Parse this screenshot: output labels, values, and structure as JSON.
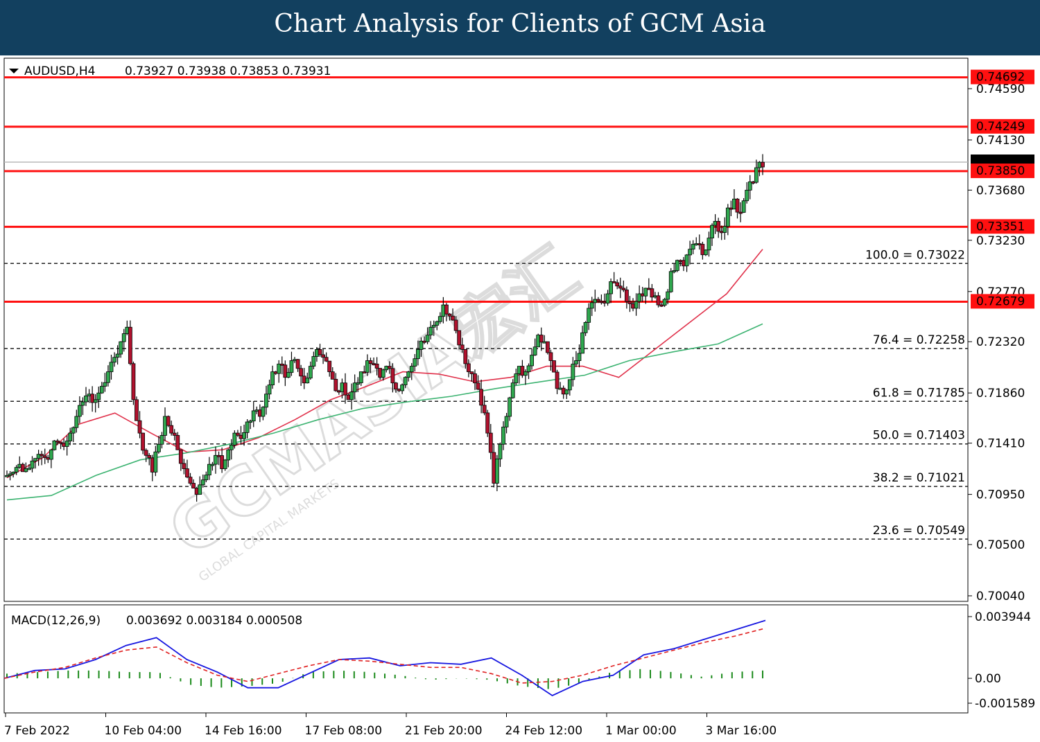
{
  "header": {
    "title": "Chart Analysis for Clients of GCM Asia"
  },
  "watermark": {
    "text": "GCMASIA宏汇",
    "subtitle": "GLOBAL CAPITAL MARKETS"
  },
  "chart_data": [
    {
      "type": "candlestick",
      "title": "AUDUSD,H4",
      "ohlc_label": "0.73927 0.73938 0.73853 0.73931",
      "ylim": [
        0.7004,
        0.749
      ],
      "y_ticks": [
        {
          "value": 0.7459,
          "label": "0.74590"
        },
        {
          "value": 0.7413,
          "label": "0.74130"
        },
        {
          "value": 0.7368,
          "label": "0.73680"
        },
        {
          "value": 0.7323,
          "label": "0.73230"
        },
        {
          "value": 0.7277,
          "label": "0.72770"
        },
        {
          "value": 0.7232,
          "label": "0.72320"
        },
        {
          "value": 0.7186,
          "label": "0.71860"
        },
        {
          "value": 0.7141,
          "label": "0.71410"
        },
        {
          "value": 0.7095,
          "label": "0.70950"
        },
        {
          "value": 0.705,
          "label": "0.70500"
        },
        {
          "value": 0.7004,
          "label": "0.70040"
        }
      ],
      "x_labels": [
        "7 Feb 2022",
        "10 Feb 04:00",
        "14 Feb 16:00",
        "17 Feb 08:00",
        "21 Feb 20:00",
        "24 Feb 12:00",
        "1 Mar 00:00",
        "3 Mar 16:00"
      ],
      "current_price": {
        "value": 0.73931,
        "label": "0.73931"
      },
      "resistance_levels": [
        {
          "value": 0.74692,
          "label": "0.74692"
        },
        {
          "value": 0.74249,
          "label": "0.74249"
        },
        {
          "value": 0.7385,
          "label": "0.73850"
        },
        {
          "value": 0.73351,
          "label": "0.73351"
        },
        {
          "value": 0.72679,
          "label": "0.72679"
        }
      ],
      "fibonacci_levels": [
        {
          "value": 0.73022,
          "label": "100.0 = 0.73022"
        },
        {
          "value": 0.72258,
          "label": "76.4 = 0.72258"
        },
        {
          "value": 0.71785,
          "label": "61.8 = 0.71785"
        },
        {
          "value": 0.71403,
          "label": "50.0 = 0.71403"
        },
        {
          "value": 0.71021,
          "label": "38.2 = 0.71021"
        },
        {
          "value": 0.70549,
          "label": "23.6 = 0.70549"
        }
      ],
      "trend_path": [
        0.7112,
        0.7115,
        0.7122,
        0.7118,
        0.7125,
        0.7131,
        0.7128,
        0.7135,
        0.7142,
        0.7138,
        0.715,
        0.7165,
        0.7178,
        0.7185,
        0.718,
        0.7192,
        0.7205,
        0.7218,
        0.7232,
        0.7245,
        0.718,
        0.715,
        0.713,
        0.7115,
        0.714,
        0.7165,
        0.715,
        0.7135,
        0.7118,
        0.7105,
        0.7095,
        0.7108,
        0.7122,
        0.713,
        0.7118,
        0.7135,
        0.715,
        0.7145,
        0.716,
        0.717,
        0.7165,
        0.7185,
        0.7205,
        0.7212,
        0.72,
        0.7215,
        0.7208,
        0.7195,
        0.721,
        0.7225,
        0.7218,
        0.7205,
        0.7188,
        0.7195,
        0.718,
        0.7195,
        0.7205,
        0.7215,
        0.7212,
        0.72,
        0.721,
        0.7195,
        0.7188,
        0.72,
        0.721,
        0.7225,
        0.7232,
        0.7245,
        0.725,
        0.7265,
        0.7255,
        0.7242,
        0.7225,
        0.7205,
        0.7195,
        0.7175,
        0.715,
        0.7105,
        0.714,
        0.7165,
        0.7195,
        0.721,
        0.7205,
        0.722,
        0.7238,
        0.7232,
        0.7215,
        0.719,
        0.7185,
        0.7198,
        0.7215,
        0.724,
        0.7262,
        0.727,
        0.7268,
        0.7275,
        0.7285,
        0.728,
        0.7268,
        0.7262,
        0.7275,
        0.728,
        0.7272,
        0.7265,
        0.727,
        0.7295,
        0.7305,
        0.73,
        0.7315,
        0.732,
        0.731,
        0.7325,
        0.734,
        0.733,
        0.7352,
        0.736,
        0.7348,
        0.7368,
        0.7375,
        0.7393
      ],
      "series": [
        {
          "name": "",
          "color": "#e0304a",
          "values": [
            0.711,
            0.7128,
            0.7158,
            0.7168,
            0.715,
            0.7133,
            0.7135,
            0.7146,
            0.7162,
            0.718,
            0.7192,
            0.7205,
            0.7203,
            0.7196,
            0.72,
            0.721,
            0.721,
            0.72,
            0.7225,
            0.725,
            0.7275,
            0.7315
          ]
        },
        {
          "name": "",
          "color": "#3cb371",
          "values": [
            0.709,
            0.7094,
            0.7112,
            0.7126,
            0.7132,
            0.714,
            0.715,
            0.7162,
            0.7172,
            0.7178,
            0.7183,
            0.719,
            0.7196,
            0.7202,
            0.7215,
            0.7223,
            0.723,
            0.7248
          ]
        }
      ]
    },
    {
      "type": "macd",
      "title": "MACD(12,26,9)",
      "values_label": "0.003692 0.003184 0.000508",
      "y_ticks": [
        {
          "value": 0.003944,
          "label": "0.003944"
        },
        {
          "value": 0.0,
          "label": "0.00"
        },
        {
          "value": -0.001589,
          "label": "-0.001589"
        }
      ],
      "series": [
        {
          "name": "",
          "color": "#1515e0",
          "values": [
            0.0,
            0.0005,
            0.0006,
            0.0012,
            0.0021,
            0.0026,
            0.0012,
            0.0004,
            -0.0006,
            -0.0006,
            0.0003,
            0.0012,
            0.0013,
            0.0008,
            0.001,
            0.0009,
            0.0013,
            0.0002,
            -0.0011,
            -0.0002,
            0.0002,
            0.0015,
            0.0019,
            0.0025,
            0.0031,
            0.0037
          ]
        },
        {
          "name": "",
          "color": "#e02020",
          "values": [
            0.0,
            0.0004,
            0.0007,
            0.0013,
            0.0018,
            0.002,
            0.001,
            0.0002,
            -0.0002,
            0.0003,
            0.0008,
            0.0012,
            0.0011,
            0.0009,
            0.0007,
            0.0007,
            0.0003,
            -0.0003,
            -0.0002,
            0.0002,
            0.0008,
            0.0013,
            0.0018,
            0.0023,
            0.0027,
            0.0032
          ]
        },
        {
          "name": "",
          "color": "#1a8a1a",
          "type": "histogram",
          "values": [
            0.0003,
            0.0004,
            0.0005,
            0.0005,
            0.0004,
            0.0004,
            -0.0004,
            -0.0006,
            -0.0005,
            -0.0003,
            0.0004,
            0.0005,
            0.0004,
            0.0002,
            -0.0001,
            0.0,
            -0.0001,
            -0.0005,
            -0.0007,
            -0.0003,
            0.0004,
            0.0006,
            0.0004,
            0.0001,
            0.0004,
            0.0005
          ]
        }
      ]
    }
  ]
}
